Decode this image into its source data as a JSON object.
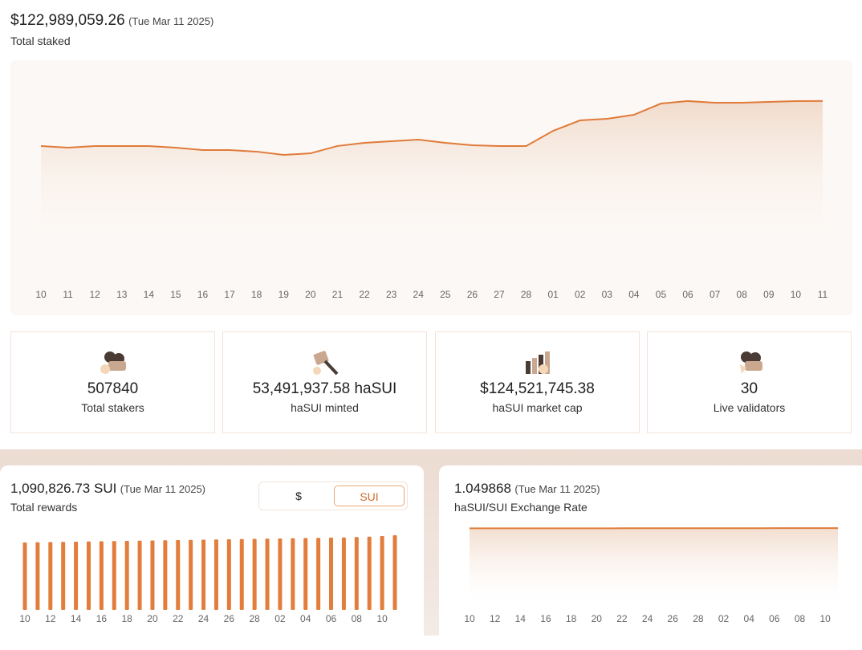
{
  "staked": {
    "value": "$122,989,059.26",
    "date": "(Tue Mar 11 2025)",
    "label": "Total staked",
    "chart": {
      "type": "area",
      "color": "#e07b39",
      "categories": [
        "10",
        "11",
        "12",
        "13",
        "14",
        "15",
        "16",
        "17",
        "18",
        "19",
        "20",
        "21",
        "22",
        "23",
        "24",
        "25",
        "26",
        "27",
        "28",
        "01",
        "02",
        "03",
        "04",
        "05",
        "06",
        "07",
        "08",
        "09",
        "10",
        "11"
      ],
      "values": [
        82900000,
        81400000,
        82900000,
        82900000,
        82900000,
        81400000,
        79300000,
        79300000,
        77900000,
        75000000,
        76400000,
        82900000,
        85700000,
        87100000,
        88600000,
        85700000,
        83600000,
        82900000,
        82900000,
        96400000,
        105700000,
        107100000,
        110700000,
        120700000,
        122900000,
        121400000,
        121400000,
        122100000,
        122900000,
        122989059.26
      ],
      "ylim": [
        0,
        160000000
      ]
    }
  },
  "stats": [
    {
      "value": "507840",
      "label": "Total stakers"
    },
    {
      "value": "53,491,937.58 haSUI",
      "label": "haSUI minted"
    },
    {
      "value": "$124,521,745.38",
      "label": "haSUI market cap"
    },
    {
      "value": "30",
      "label": "Live validators"
    }
  ],
  "rewards": {
    "value": "1,090,826.73 SUI",
    "date": "(Tue Mar 11 2025)",
    "label": "Total rewards",
    "toggle": [
      "$",
      "SUI"
    ],
    "chart": {
      "type": "bar",
      "color": "#e27d3b",
      "categories": [
        "10",
        null,
        "12",
        null,
        "14",
        null,
        "16",
        null,
        "18",
        null,
        "20",
        null,
        "22",
        null,
        "24",
        null,
        "26",
        null,
        "28",
        null,
        "02",
        null,
        "04",
        null,
        "06",
        null,
        "08",
        null,
        "10",
        null
      ],
      "values": [
        33600,
        33700,
        33800,
        33900,
        34000,
        34100,
        34200,
        34300,
        34400,
        34500,
        34600,
        34700,
        34800,
        34900,
        35000,
        35100,
        35200,
        35300,
        35400,
        35500,
        35600,
        35700,
        35800,
        35900,
        36000,
        36100,
        36300,
        36500,
        36800,
        37200
      ],
      "ylim": [
        0,
        40000
      ]
    }
  },
  "exchange_rate": {
    "value": "1.049868",
    "date": "(Tue Mar 11 2025)",
    "label": "haSUI/SUI Exchange Rate",
    "chart": {
      "type": "area",
      "color": "#e07b39",
      "categories": [
        "10",
        null,
        "12",
        null,
        "14",
        null,
        "16",
        null,
        "18",
        null,
        "20",
        null,
        "22",
        null,
        "24",
        null,
        "26",
        null,
        "28",
        null,
        "02",
        null,
        "04",
        null,
        "06",
        null,
        "08",
        null,
        "10",
        null
      ],
      "values": [
        1.0465,
        1.0466,
        1.0467,
        1.0468,
        1.047,
        1.0471,
        1.0472,
        1.0473,
        1.0474,
        1.0476,
        1.0477,
        1.0478,
        1.0479,
        1.048,
        1.0481,
        1.0483,
        1.0484,
        1.0485,
        1.0486,
        1.0487,
        1.0488,
        1.0489,
        1.049,
        1.0492,
        1.0493,
        1.0494,
        1.0495,
        1.0496,
        1.0497,
        1.049868
      ],
      "ylim": [
        0,
        1.2
      ]
    }
  }
}
